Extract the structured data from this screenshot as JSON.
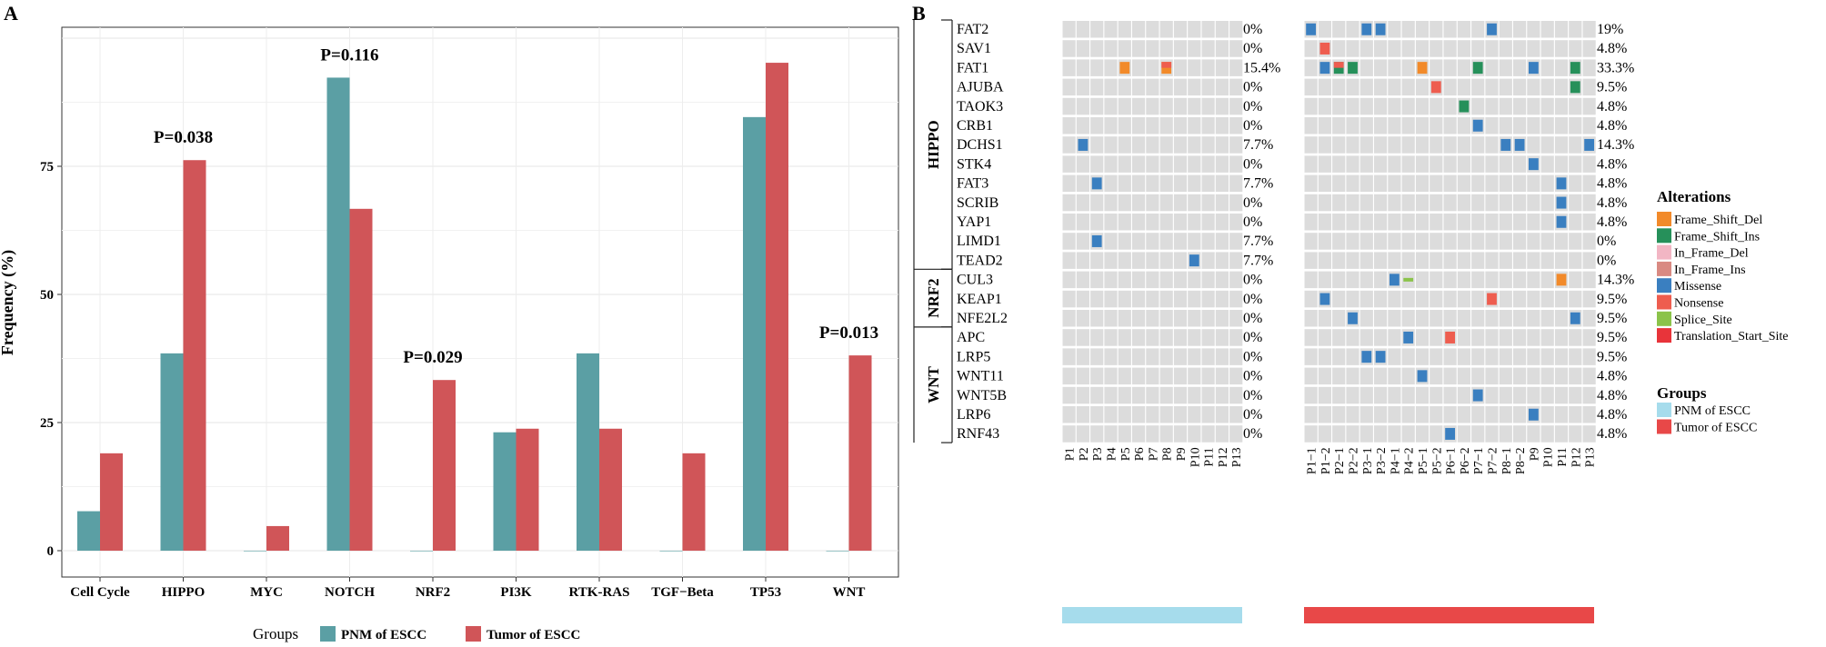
{
  "panel_labels": {
    "a": "A",
    "b": "B"
  },
  "chart_data": [
    {
      "type": "bar",
      "panel": "A",
      "ylabel": "Frequency (%)",
      "xlabel": "",
      "ylim": [
        0,
        100
      ],
      "yticks": [
        0,
        25,
        50,
        75
      ],
      "grid": true,
      "legend_title": "Groups",
      "legend_position": "bottom",
      "categories": [
        "Cell Cycle",
        "HIPPO",
        "MYC",
        "NOTCH",
        "NRF2",
        "PI3K",
        "RTK-RAS",
        "TGF−Beta",
        "TP53",
        "WNT"
      ],
      "series": [
        {
          "name": "PNM of ESCC",
          "color": "#5b9fa4",
          "values": [
            7.7,
            38.5,
            0,
            92.3,
            0,
            23.1,
            38.5,
            0,
            84.6,
            0
          ]
        },
        {
          "name": "Tumor of ESCC",
          "color": "#d05558",
          "values": [
            19.0,
            76.2,
            4.8,
            66.7,
            33.3,
            23.8,
            23.8,
            19.0,
            95.2,
            38.1
          ]
        }
      ],
      "annotations": [
        {
          "category": "HIPPO",
          "text": "P=0.038"
        },
        {
          "category": "NOTCH",
          "text": "P=0.116"
        },
        {
          "category": "NRF2",
          "text": "P=0.029"
        },
        {
          "category": "WNT",
          "text": "P=0.013"
        }
      ]
    },
    {
      "type": "heatmap",
      "panel": "B",
      "pathways": [
        {
          "name": "HIPPO",
          "genes": [
            "FAT2",
            "SAV1",
            "FAT1",
            "AJUBA",
            "TAOK3",
            "CRB1",
            "DCHS1",
            "STK4",
            "FAT3",
            "SCRIB",
            "YAP1",
            "LIMD1",
            "TEAD2"
          ]
        },
        {
          "name": "NRF2",
          "genes": [
            "CUL3",
            "KEAP1",
            "NFE2L2"
          ]
        },
        {
          "name": "WNT",
          "genes": [
            "APC",
            "LRP5",
            "WNT11",
            "WNT5B",
            "LRP6",
            "RNF43"
          ]
        }
      ],
      "genes": [
        "FAT2",
        "SAV1",
        "FAT1",
        "AJUBA",
        "TAOK3",
        "CRB1",
        "DCHS1",
        "STK4",
        "FAT3",
        "SCRIB",
        "YAP1",
        "LIMD1",
        "TEAD2",
        "CUL3",
        "KEAP1",
        "NFE2L2",
        "APC",
        "LRP5",
        "WNT11",
        "WNT5B",
        "LRP6",
        "RNF43"
      ],
      "pnm_samples": [
        "P1",
        "P2",
        "P3",
        "P4",
        "P5",
        "P6",
        "P7",
        "P8",
        "P9",
        "P10",
        "P11",
        "P12",
        "P13"
      ],
      "tumor_samples": [
        "P1−1",
        "P1−2",
        "P2−1",
        "P2−2",
        "P3−1",
        "P3−2",
        "P4−1",
        "P4−2",
        "P5−1",
        "P5−2",
        "P6−1",
        "P6−2",
        "P7−1",
        "P7−2",
        "P8−1",
        "P8−2",
        "P9",
        "P10",
        "P11",
        "P12",
        "P13"
      ],
      "pnm_freq": [
        "0%",
        "0%",
        "15.4%",
        "0%",
        "0%",
        "0%",
        "7.7%",
        "0%",
        "7.7%",
        "0%",
        "0%",
        "7.7%",
        "7.7%",
        "0%",
        "0%",
        "0%",
        "0%",
        "0%",
        "0%",
        "0%",
        "0%",
        "0%"
      ],
      "tumor_freq": [
        "19%",
        "4.8%",
        "33.3%",
        "9.5%",
        "4.8%",
        "4.8%",
        "14.3%",
        "4.8%",
        "4.8%",
        "4.8%",
        "4.8%",
        "0%",
        "0%",
        "14.3%",
        "9.5%",
        "9.5%",
        "9.5%",
        "9.5%",
        "4.8%",
        "4.8%",
        "4.8%",
        "4.8%"
      ],
      "pnm_alterations": [
        {
          "gene": "FAT1",
          "sample": "P5",
          "type": "Frame_Shift_Del"
        },
        {
          "gene": "FAT1",
          "sample": "P8",
          "type": "Frame_Shift_Del"
        },
        {
          "gene": "FAT1",
          "sample": "P8",
          "type": "Nonsense",
          "half": "top"
        },
        {
          "gene": "DCHS1",
          "sample": "P2",
          "type": "Missense"
        },
        {
          "gene": "FAT3",
          "sample": "P3",
          "type": "Missense"
        },
        {
          "gene": "LIMD1",
          "sample": "P3",
          "type": "Missense"
        },
        {
          "gene": "TEAD2",
          "sample": "P10",
          "type": "Missense"
        }
      ],
      "tumor_alterations": [
        {
          "gene": "FAT2",
          "sample": "P1−1",
          "type": "Missense"
        },
        {
          "gene": "FAT2",
          "sample": "P3−1",
          "type": "Missense"
        },
        {
          "gene": "FAT2",
          "sample": "P3−2",
          "type": "Missense"
        },
        {
          "gene": "FAT2",
          "sample": "P7−2",
          "type": "Missense"
        },
        {
          "gene": "SAV1",
          "sample": "P1−2",
          "type": "Nonsense"
        },
        {
          "gene": "FAT1",
          "sample": "P1−2",
          "type": "Missense"
        },
        {
          "gene": "FAT1",
          "sample": "P2−1",
          "type": "Frame_Shift_Ins"
        },
        {
          "gene": "FAT1",
          "sample": "P2−1",
          "type": "Nonsense",
          "half": "top"
        },
        {
          "gene": "FAT1",
          "sample": "P2−2",
          "type": "Frame_Shift_Ins"
        },
        {
          "gene": "FAT1",
          "sample": "P5−1",
          "type": "Frame_Shift_Del"
        },
        {
          "gene": "FAT1",
          "sample": "P7−1",
          "type": "Frame_Shift_Ins"
        },
        {
          "gene": "FAT1",
          "sample": "P9",
          "type": "Missense"
        },
        {
          "gene": "FAT1",
          "sample": "P12",
          "type": "Frame_Shift_Ins"
        },
        {
          "gene": "AJUBA",
          "sample": "P5−2",
          "type": "Nonsense"
        },
        {
          "gene": "AJUBA",
          "sample": "P12",
          "type": "Frame_Shift_Ins"
        },
        {
          "gene": "TAOK3",
          "sample": "P6−2",
          "type": "Frame_Shift_Ins"
        },
        {
          "gene": "CRB1",
          "sample": "P7−1",
          "type": "Missense"
        },
        {
          "gene": "DCHS1",
          "sample": "P8−1",
          "type": "Missense"
        },
        {
          "gene": "DCHS1",
          "sample": "P8−2",
          "type": "Missense"
        },
        {
          "gene": "DCHS1",
          "sample": "P13",
          "type": "Missense"
        },
        {
          "gene": "STK4",
          "sample": "P9",
          "type": "Missense"
        },
        {
          "gene": "FAT3",
          "sample": "P11",
          "type": "Missense"
        },
        {
          "gene": "SCRIB",
          "sample": "P11",
          "type": "Missense"
        },
        {
          "gene": "YAP1",
          "sample": "P11",
          "type": "Missense"
        },
        {
          "gene": "CUL3",
          "sample": "P4−1",
          "type": "Missense"
        },
        {
          "gene": "CUL3",
          "sample": "P4−2",
          "type": "Splice_Site",
          "half": "thin"
        },
        {
          "gene": "CUL3",
          "sample": "P11",
          "type": "Frame_Shift_Del"
        },
        {
          "gene": "KEAP1",
          "sample": "P1−2",
          "type": "Missense"
        },
        {
          "gene": "KEAP1",
          "sample": "P7−2",
          "type": "Nonsense"
        },
        {
          "gene": "NFE2L2",
          "sample": "P2−2",
          "type": "Missense"
        },
        {
          "gene": "NFE2L2",
          "sample": "P12",
          "type": "Missense"
        },
        {
          "gene": "APC",
          "sample": "P4−2",
          "type": "Missense"
        },
        {
          "gene": "APC",
          "sample": "P6−1",
          "type": "Nonsense"
        },
        {
          "gene": "LRP5",
          "sample": "P3−1",
          "type": "Missense"
        },
        {
          "gene": "LRP5",
          "sample": "P3−2",
          "type": "Missense"
        },
        {
          "gene": "WNT11",
          "sample": "P5−1",
          "type": "Missense"
        },
        {
          "gene": "WNT5B",
          "sample": "P7−1",
          "type": "Missense"
        },
        {
          "gene": "LRP6",
          "sample": "P9",
          "type": "Missense"
        },
        {
          "gene": "RNF43",
          "sample": "P6−1",
          "type": "Missense"
        }
      ],
      "alterations_legend": {
        "title": "Alterations",
        "items": [
          {
            "name": "Frame_Shift_Del",
            "color": "#f28a2a"
          },
          {
            "name": "Frame_Shift_Ins",
            "color": "#26905a"
          },
          {
            "name": "In_Frame_Del",
            "color": "#f2b6c4"
          },
          {
            "name": "In_Frame_Ins",
            "color": "#d98a82"
          },
          {
            "name": "Missense",
            "color": "#3a7fc0"
          },
          {
            "name": "Nonsense",
            "color": "#ee5d4f"
          },
          {
            "name": "Splice_Site",
            "color": "#8bc34a"
          },
          {
            "name": "Translation_Start_Site",
            "color": "#e8343a"
          }
        ]
      },
      "groups_legend": {
        "title": "Groups",
        "items": [
          {
            "name": "PNM of ESCC",
            "color": "#a6dcec"
          },
          {
            "name": "Tumor of ESCC",
            "color": "#e84848"
          }
        ]
      },
      "cell_color": "#dcdcdc"
    }
  ]
}
